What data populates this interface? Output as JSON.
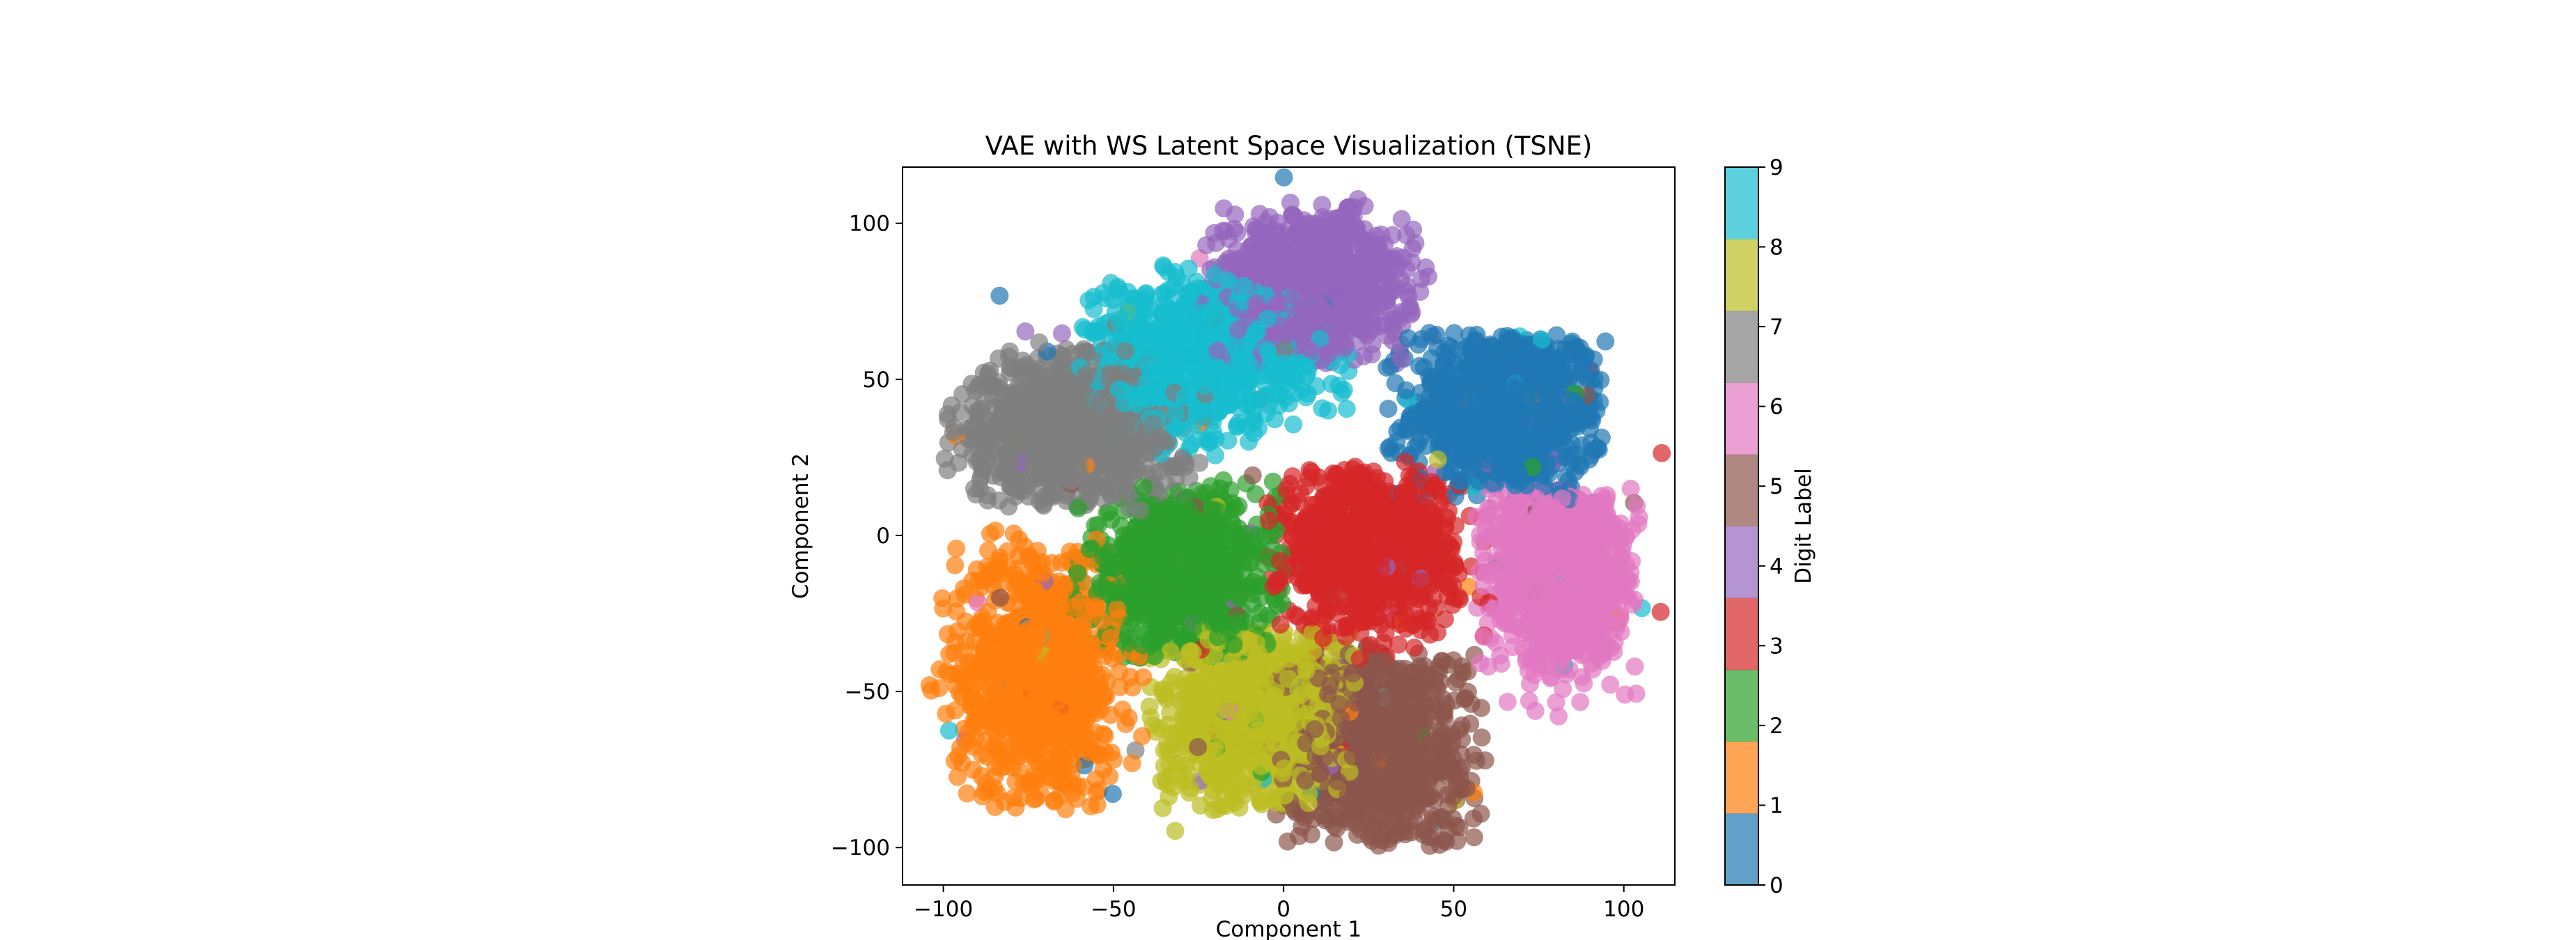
{
  "chart_data": {
    "type": "scatter",
    "title": "VAE with WS Latent Space Visualization (TSNE)",
    "xlabel": "Component 1",
    "ylabel": "Component 2",
    "xlim": [
      -112,
      115
    ],
    "ylim": [
      -112,
      118
    ],
    "xticks": [
      -100,
      -50,
      0,
      50,
      100
    ],
    "yticks": [
      -100,
      -50,
      0,
      50,
      100
    ],
    "xtick_labels": [
      "−100",
      "−50",
      "0",
      "50",
      "100"
    ],
    "ytick_labels": [
      "−100",
      "−50",
      "0",
      "50",
      "100"
    ],
    "grid": false,
    "colorbar": {
      "label": "Digit Label",
      "range": [
        0,
        9
      ],
      "ticks": [
        0,
        1,
        2,
        3,
        4,
        5,
        6,
        7,
        8,
        9
      ],
      "tick_labels": [
        "0",
        "1",
        "2",
        "3",
        "4",
        "5",
        "6",
        "7",
        "8",
        "9"
      ],
      "colors": [
        "#1f77b4",
        "#ff7f0e",
        "#2ca02c",
        "#d62728",
        "#9467bd",
        "#8c564b",
        "#e377c2",
        "#7f7f7f",
        "#bcbd22",
        "#17becf"
      ]
    },
    "clusters": [
      {
        "label": 0,
        "color": "#1f77b4",
        "center": [
          66,
          40
        ],
        "spread": [
          14,
          14
        ],
        "bounds_x": [
          30,
          95
        ],
        "bounds_y": [
          10,
          65
        ]
      },
      {
        "label": 1,
        "color": "#ff7f0e",
        "center": [
          -72,
          -45
        ],
        "spread": [
          12,
          22
        ],
        "bounds_x": [
          -105,
          -40
        ],
        "bounds_y": [
          -88,
          2
        ]
      },
      {
        "label": 2,
        "color": "#2ca02c",
        "center": [
          -30,
          -12
        ],
        "spread": [
          14,
          13
        ],
        "bounds_x": [
          -65,
          0
        ],
        "bounds_y": [
          -40,
          18
        ]
      },
      {
        "label": 3,
        "color": "#d62728",
        "center": [
          25,
          -5
        ],
        "spread": [
          13,
          13
        ],
        "bounds_x": [
          -5,
          60
        ],
        "bounds_y": [
          -40,
          22
        ]
      },
      {
        "label": 4,
        "color": "#9467bd",
        "center": [
          8,
          80
        ],
        "spread": [
          14,
          12
        ],
        "bounds_x": [
          -25,
          45
        ],
        "bounds_y": [
          55,
          108
        ]
      },
      {
        "label": 5,
        "color": "#8c564b",
        "center": [
          28,
          -68
        ],
        "spread": [
          13,
          17
        ],
        "bounds_x": [
          -5,
          60
        ],
        "bounds_y": [
          -100,
          -35
        ]
      },
      {
        "label": 6,
        "color": "#e377c2",
        "center": [
          82,
          -12
        ],
        "spread": [
          11,
          16
        ],
        "bounds_x": [
          55,
          105
        ],
        "bounds_y": [
          -60,
          15
        ]
      },
      {
        "label": 7,
        "color": "#7f7f7f",
        "center": [
          -62,
          35
        ],
        "spread": [
          16,
          13
        ],
        "bounds_x": [
          -100,
          -20
        ],
        "bounds_y": [
          8,
          60
        ]
      },
      {
        "label": 8,
        "color": "#bcbd22",
        "center": [
          -8,
          -58
        ],
        "spread": [
          14,
          15
        ],
        "bounds_x": [
          -40,
          25
        ],
        "bounds_y": [
          -88,
          -30
        ]
      },
      {
        "label": 9,
        "color": "#17becf",
        "center": [
          -25,
          58
        ],
        "spread": [
          17,
          12
        ],
        "bounds_x": [
          -60,
          20
        ],
        "bounds_y": [
          25,
          88
        ]
      }
    ]
  }
}
